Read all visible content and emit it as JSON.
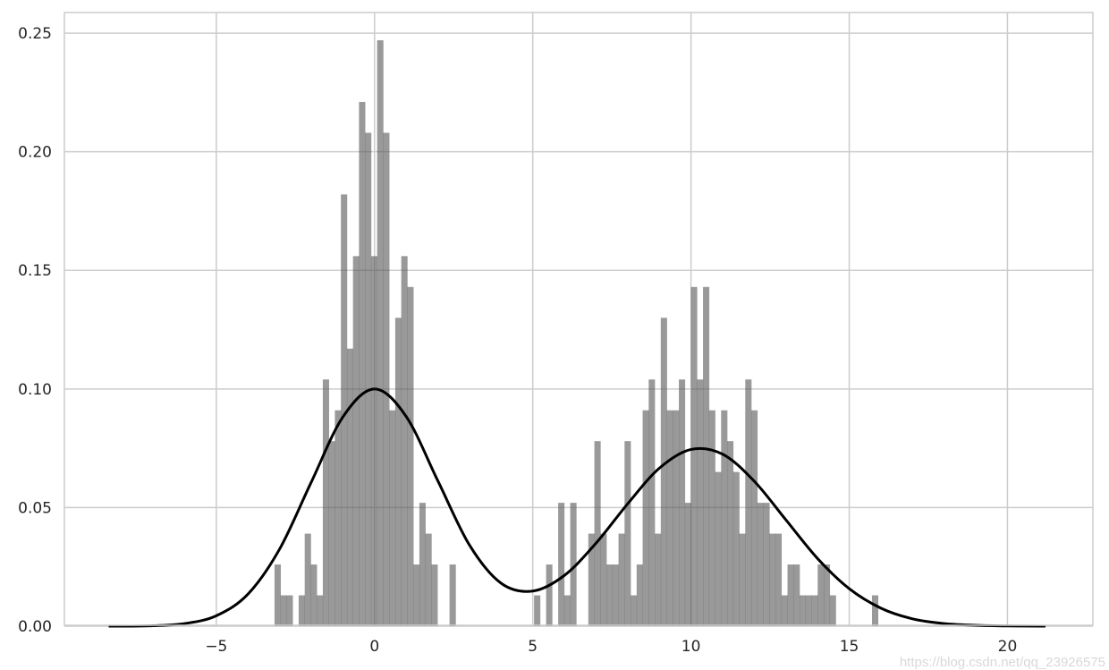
{
  "chart_data": {
    "type": "bar",
    "title": "",
    "xlabel": "",
    "ylabel": "",
    "xlim": [
      -9.8,
      22.7
    ],
    "ylim": [
      0,
      0.2587
    ],
    "grid": true,
    "x_ticks": [
      -5,
      0,
      5,
      10,
      15,
      20
    ],
    "x_tick_labels": [
      "−5",
      "0",
      "5",
      "10",
      "15",
      "20"
    ],
    "y_ticks": [
      0,
      0.05,
      0.1,
      0.15,
      0.2,
      0.25
    ],
    "y_tick_labels": [
      "0.00",
      "0.05",
      "0.10",
      "0.15",
      "0.20",
      "0.25"
    ],
    "histogram": {
      "bin_start": -3.16,
      "bin_width": 0.1907,
      "color": "#999999",
      "values": [
        0.026,
        0.013,
        0.013,
        0,
        0.013,
        0.039,
        0.026,
        0.013,
        0.104,
        0.078,
        0.091,
        0.182,
        0.117,
        0.156,
        0.221,
        0.208,
        0.156,
        0.247,
        0.208,
        0.091,
        0.13,
        0.156,
        0.143,
        0.026,
        0.052,
        0.039,
        0.026,
        0,
        0,
        0.026,
        0,
        0,
        0,
        0,
        0,
        0,
        0,
        0,
        0,
        0,
        0,
        0,
        0,
        0.013,
        0,
        0.026,
        0,
        0.052,
        0.013,
        0.052,
        0,
        0,
        0.039,
        0.078,
        0.039,
        0.026,
        0.026,
        0.039,
        0.078,
        0.013,
        0.026,
        0.091,
        0.104,
        0.039,
        0.13,
        0.091,
        0.091,
        0.104,
        0.052,
        0.143,
        0.104,
        0.143,
        0.091,
        0.065,
        0.091,
        0.078,
        0.065,
        0.039,
        0.104,
        0.091,
        0.052,
        0.052,
        0.039,
        0.039,
        0.013,
        0.026,
        0.026,
        0.013,
        0.013,
        0.013,
        0.026,
        0.026,
        0.013,
        0,
        0,
        0,
        0,
        0,
        0,
        0.013
      ]
    },
    "kde": {
      "type": "line",
      "color": "#000000",
      "x": [
        -8.4,
        -8,
        -7,
        -6,
        -5,
        -4,
        -3,
        -2,
        -1,
        0,
        1,
        2,
        3,
        4,
        5,
        6,
        7,
        8,
        9,
        10,
        11,
        12,
        13,
        14,
        15,
        16,
        17,
        18,
        19,
        20,
        21,
        21.2
      ],
      "y": [
        0.0,
        0.0,
        0.0002,
        0.0011,
        0.0044,
        0.0135,
        0.0325,
        0.0607,
        0.0882,
        0.1,
        0.0884,
        0.0613,
        0.0342,
        0.0181,
        0.0148,
        0.0214,
        0.035,
        0.0516,
        0.0666,
        0.0745,
        0.0725,
        0.0611,
        0.0448,
        0.0285,
        0.0158,
        0.0076,
        0.0031,
        0.0011,
        0.0004,
        0.0001,
        0.0,
        0.0
      ]
    },
    "watermark": "https://blog.csdn.net/qq_23926575"
  }
}
